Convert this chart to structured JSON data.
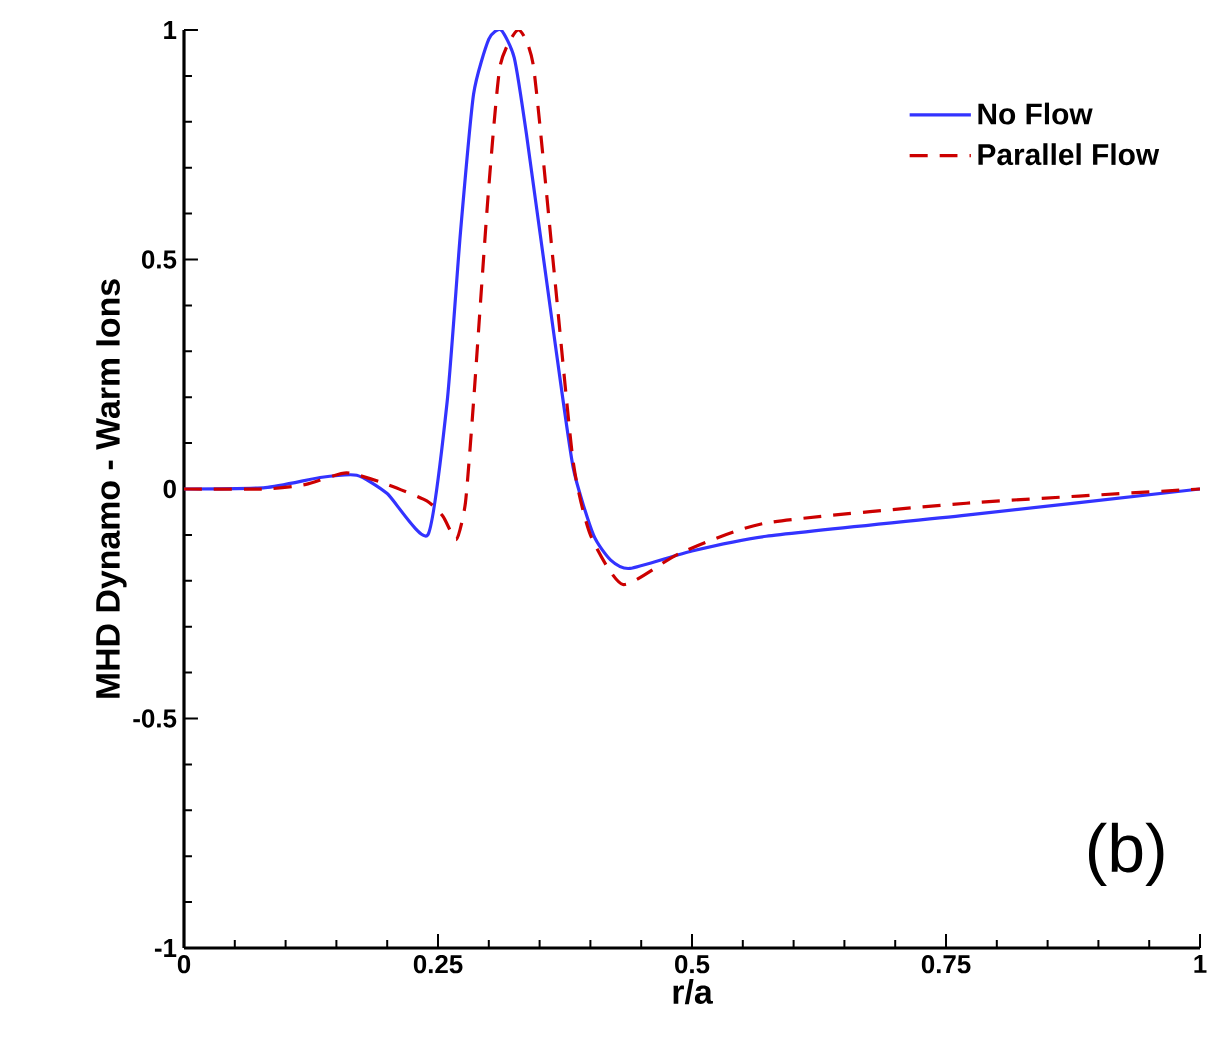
{
  "chart_data": {
    "type": "line",
    "xlabel": "r/a",
    "ylabel": "MHD Dynamo - Warm Ions",
    "xlim": [
      0,
      1
    ],
    "ylim": [
      -1,
      1
    ],
    "xticks": [
      0,
      0.25,
      0.5,
      0.75,
      1
    ],
    "yticks": [
      -1,
      -0.5,
      0,
      0.5,
      1
    ],
    "legend": "top right",
    "grid": false,
    "annotations": [
      "(b)"
    ],
    "series": [
      {
        "name": "No Flow",
        "color": "#3333ff",
        "line_style": "solid",
        "x": [
          0,
          0.08,
          0.134,
          0.17,
          0.2,
          0.24,
          0.259,
          0.272,
          0.285,
          0.3,
          0.312,
          0.325,
          0.337,
          0.364,
          0.383,
          0.403,
          0.42,
          0.439,
          0.5,
          0.573,
          0.77,
          1
        ],
        "values": [
          0,
          0.003,
          0.025,
          0.03,
          -0.01,
          -0.1,
          0.19,
          0.556,
          0.86,
          0.98,
          1,
          0.94,
          0.774,
          0.338,
          0.047,
          -0.1,
          -0.155,
          -0.173,
          -0.135,
          -0.103,
          -0.057,
          0
        ]
      },
      {
        "name": "Parallel Flow",
        "color": "#cc0000",
        "line_style": "dashed",
        "x": [
          0,
          0.08,
          0.12,
          0.16,
          0.2,
          0.239,
          0.255,
          0.268,
          0.277,
          0.285,
          0.299,
          0.311,
          0.329,
          0.344,
          0.364,
          0.383,
          0.4,
          0.432,
          0.488,
          0.573,
          0.77,
          1
        ],
        "values": [
          0,
          0,
          0.01,
          0.035,
          0.01,
          -0.026,
          -0.06,
          -0.11,
          -0.03,
          0.19,
          0.63,
          0.92,
          1,
          0.92,
          0.48,
          0.06,
          -0.1,
          -0.208,
          -0.14,
          -0.074,
          -0.031,
          0
        ]
      }
    ]
  }
}
